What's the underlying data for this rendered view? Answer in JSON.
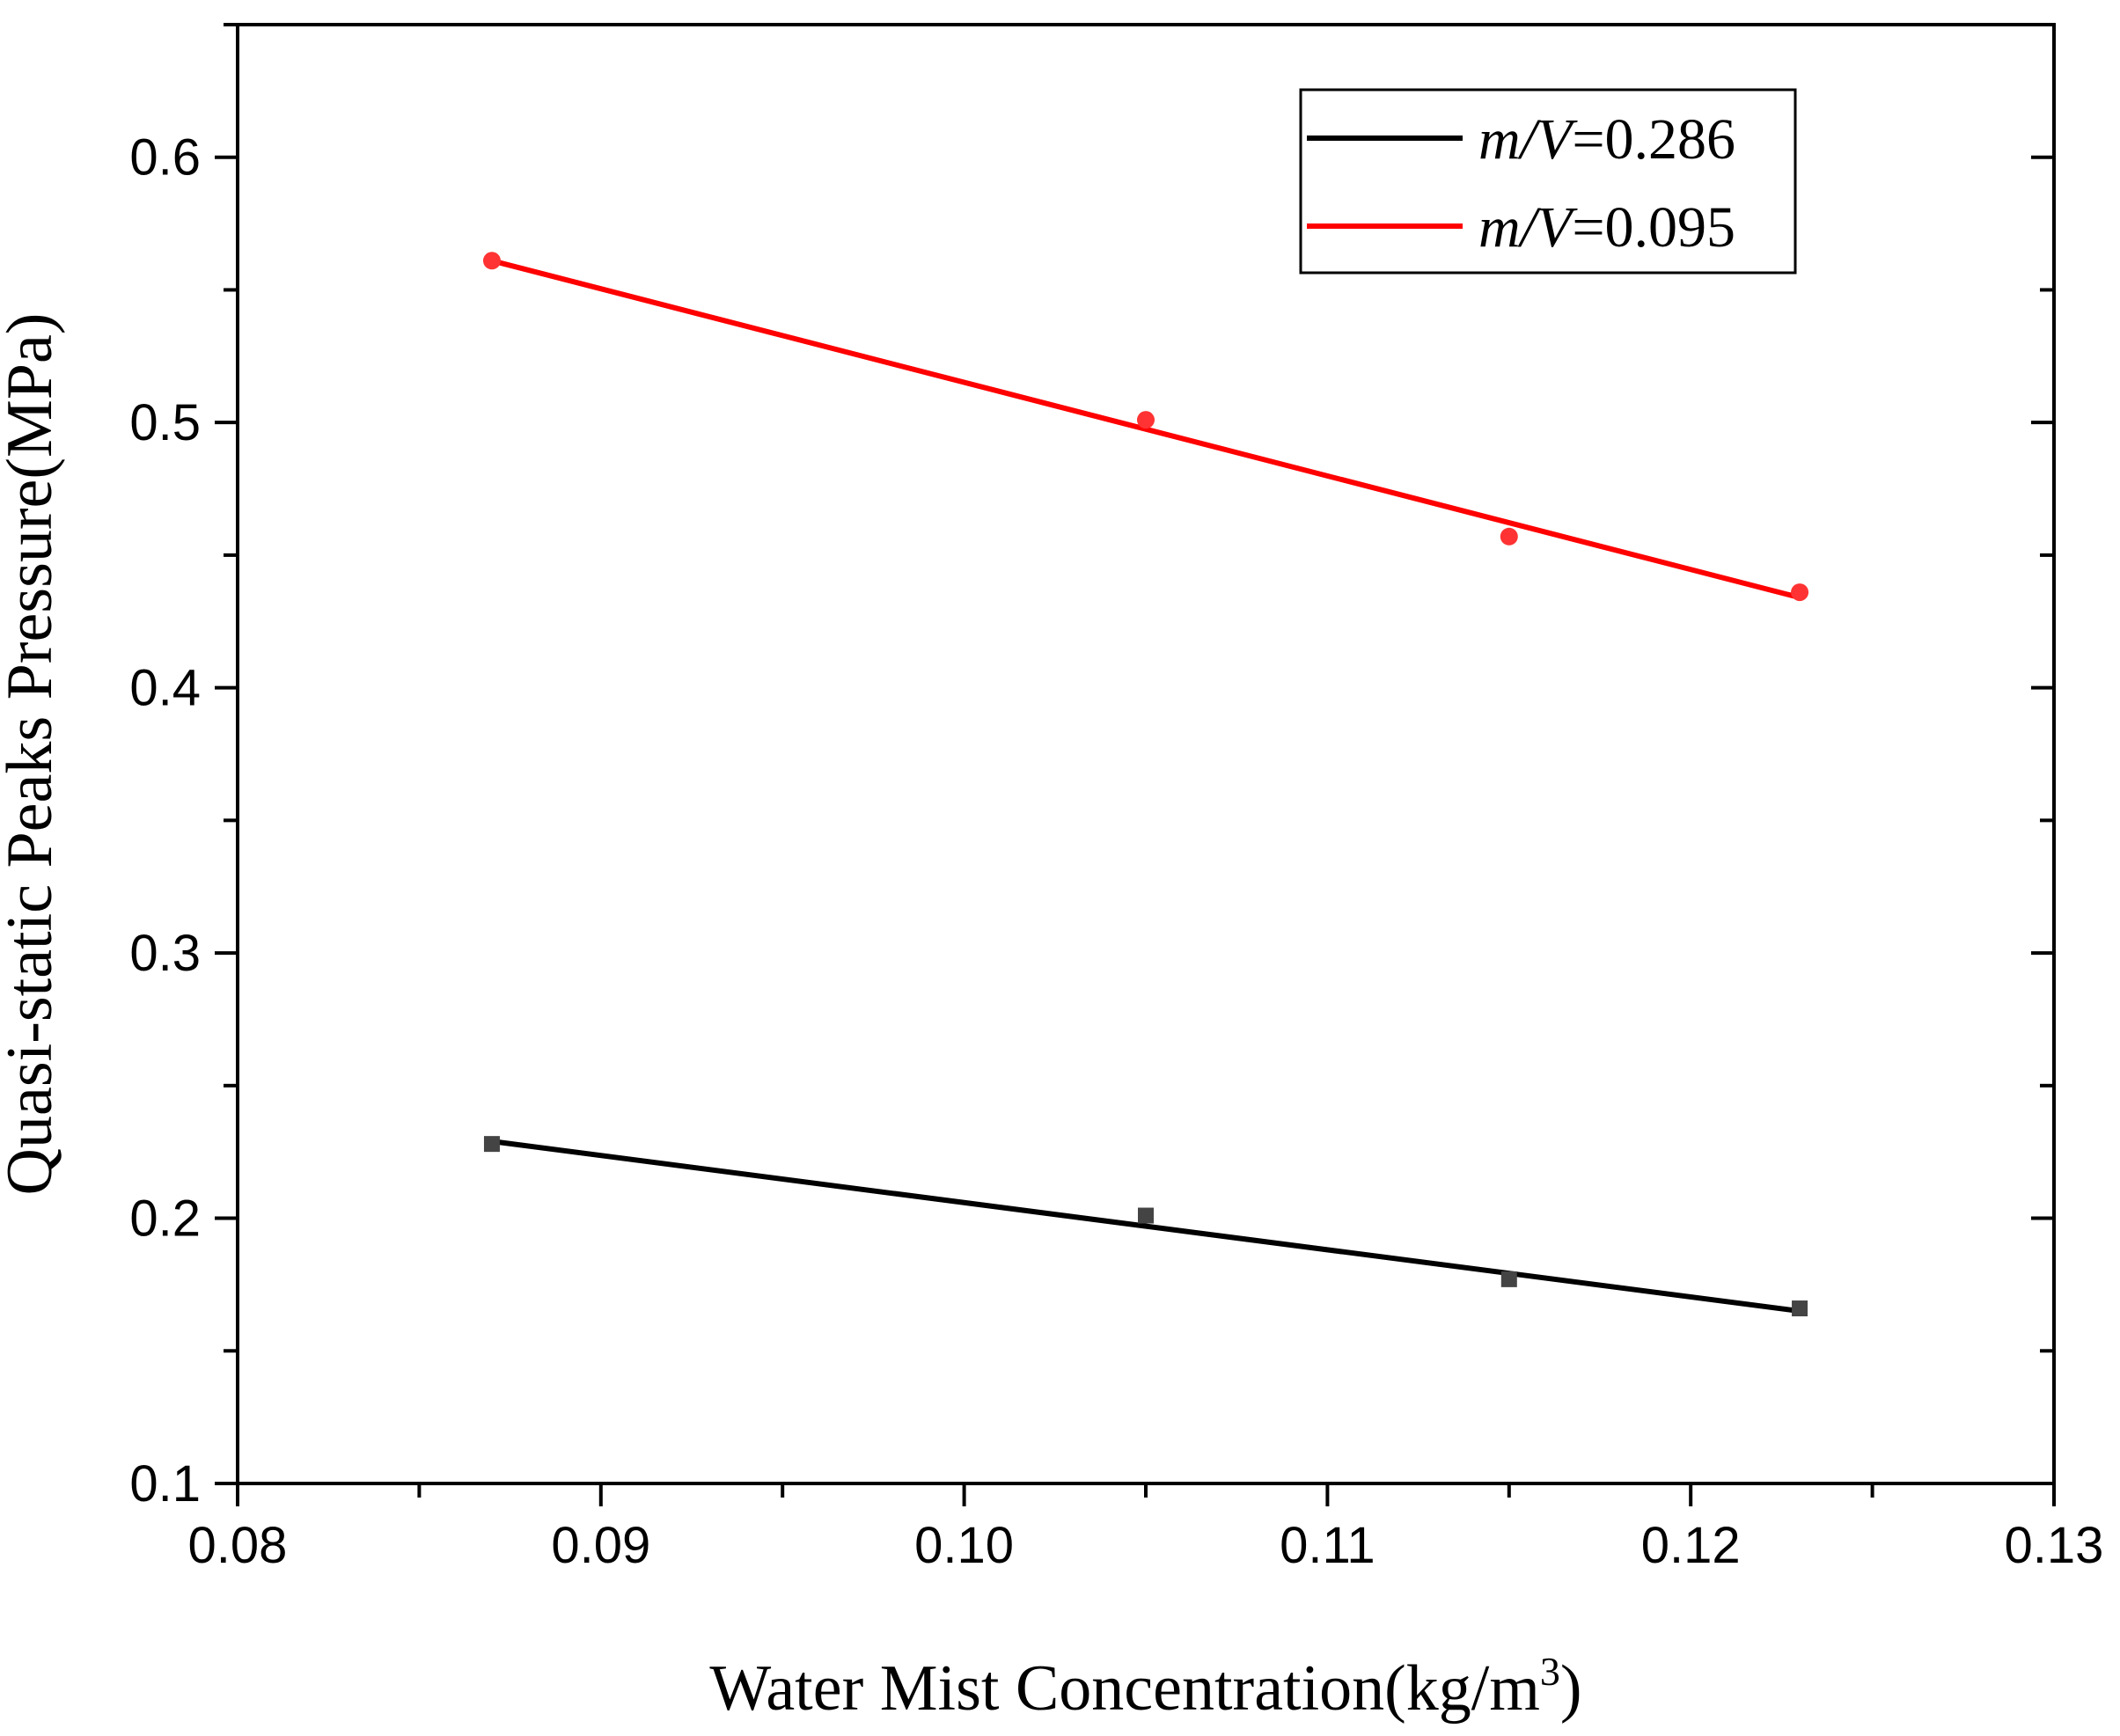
{
  "chart_data": {
    "type": "scatter",
    "title": "",
    "xlabel": "Water Mist Concentration(kg/m",
    "xlabel_sup": "3",
    "xlabel_close": ")",
    "ylabel": "Quasi-static Peaks Pressure(MPa)",
    "xlim": [
      0.08,
      0.13
    ],
    "ylim": [
      0.1,
      0.65
    ],
    "x_ticks": [
      "0.08",
      "0.09",
      "0.10",
      "0.11",
      "0.12",
      "0.13"
    ],
    "y_ticks": [
      "0.1",
      "0.2",
      "0.3",
      "0.4",
      "0.5",
      "0.6"
    ],
    "legend_placement": "top-right",
    "series": [
      {
        "name_italic": "m/V",
        "name_value": "=0.286",
        "color": "#000000",
        "marker": "square",
        "x": [
          0.087,
          0.105,
          0.115,
          0.123
        ],
        "y": [
          0.228,
          0.201,
          0.177,
          0.166
        ],
        "fit": [
          [
            0.087,
            0.229
          ],
          [
            0.123,
            0.165
          ]
        ]
      },
      {
        "name_italic": "m/V",
        "name_value": "=0.095",
        "color": "#ff0000",
        "marker": "circle",
        "x": [
          0.087,
          0.105,
          0.115,
          0.123
        ],
        "y": [
          0.561,
          0.501,
          0.457,
          0.436
        ],
        "fit": [
          [
            0.087,
            0.561
          ],
          [
            0.123,
            0.434
          ]
        ]
      }
    ]
  }
}
